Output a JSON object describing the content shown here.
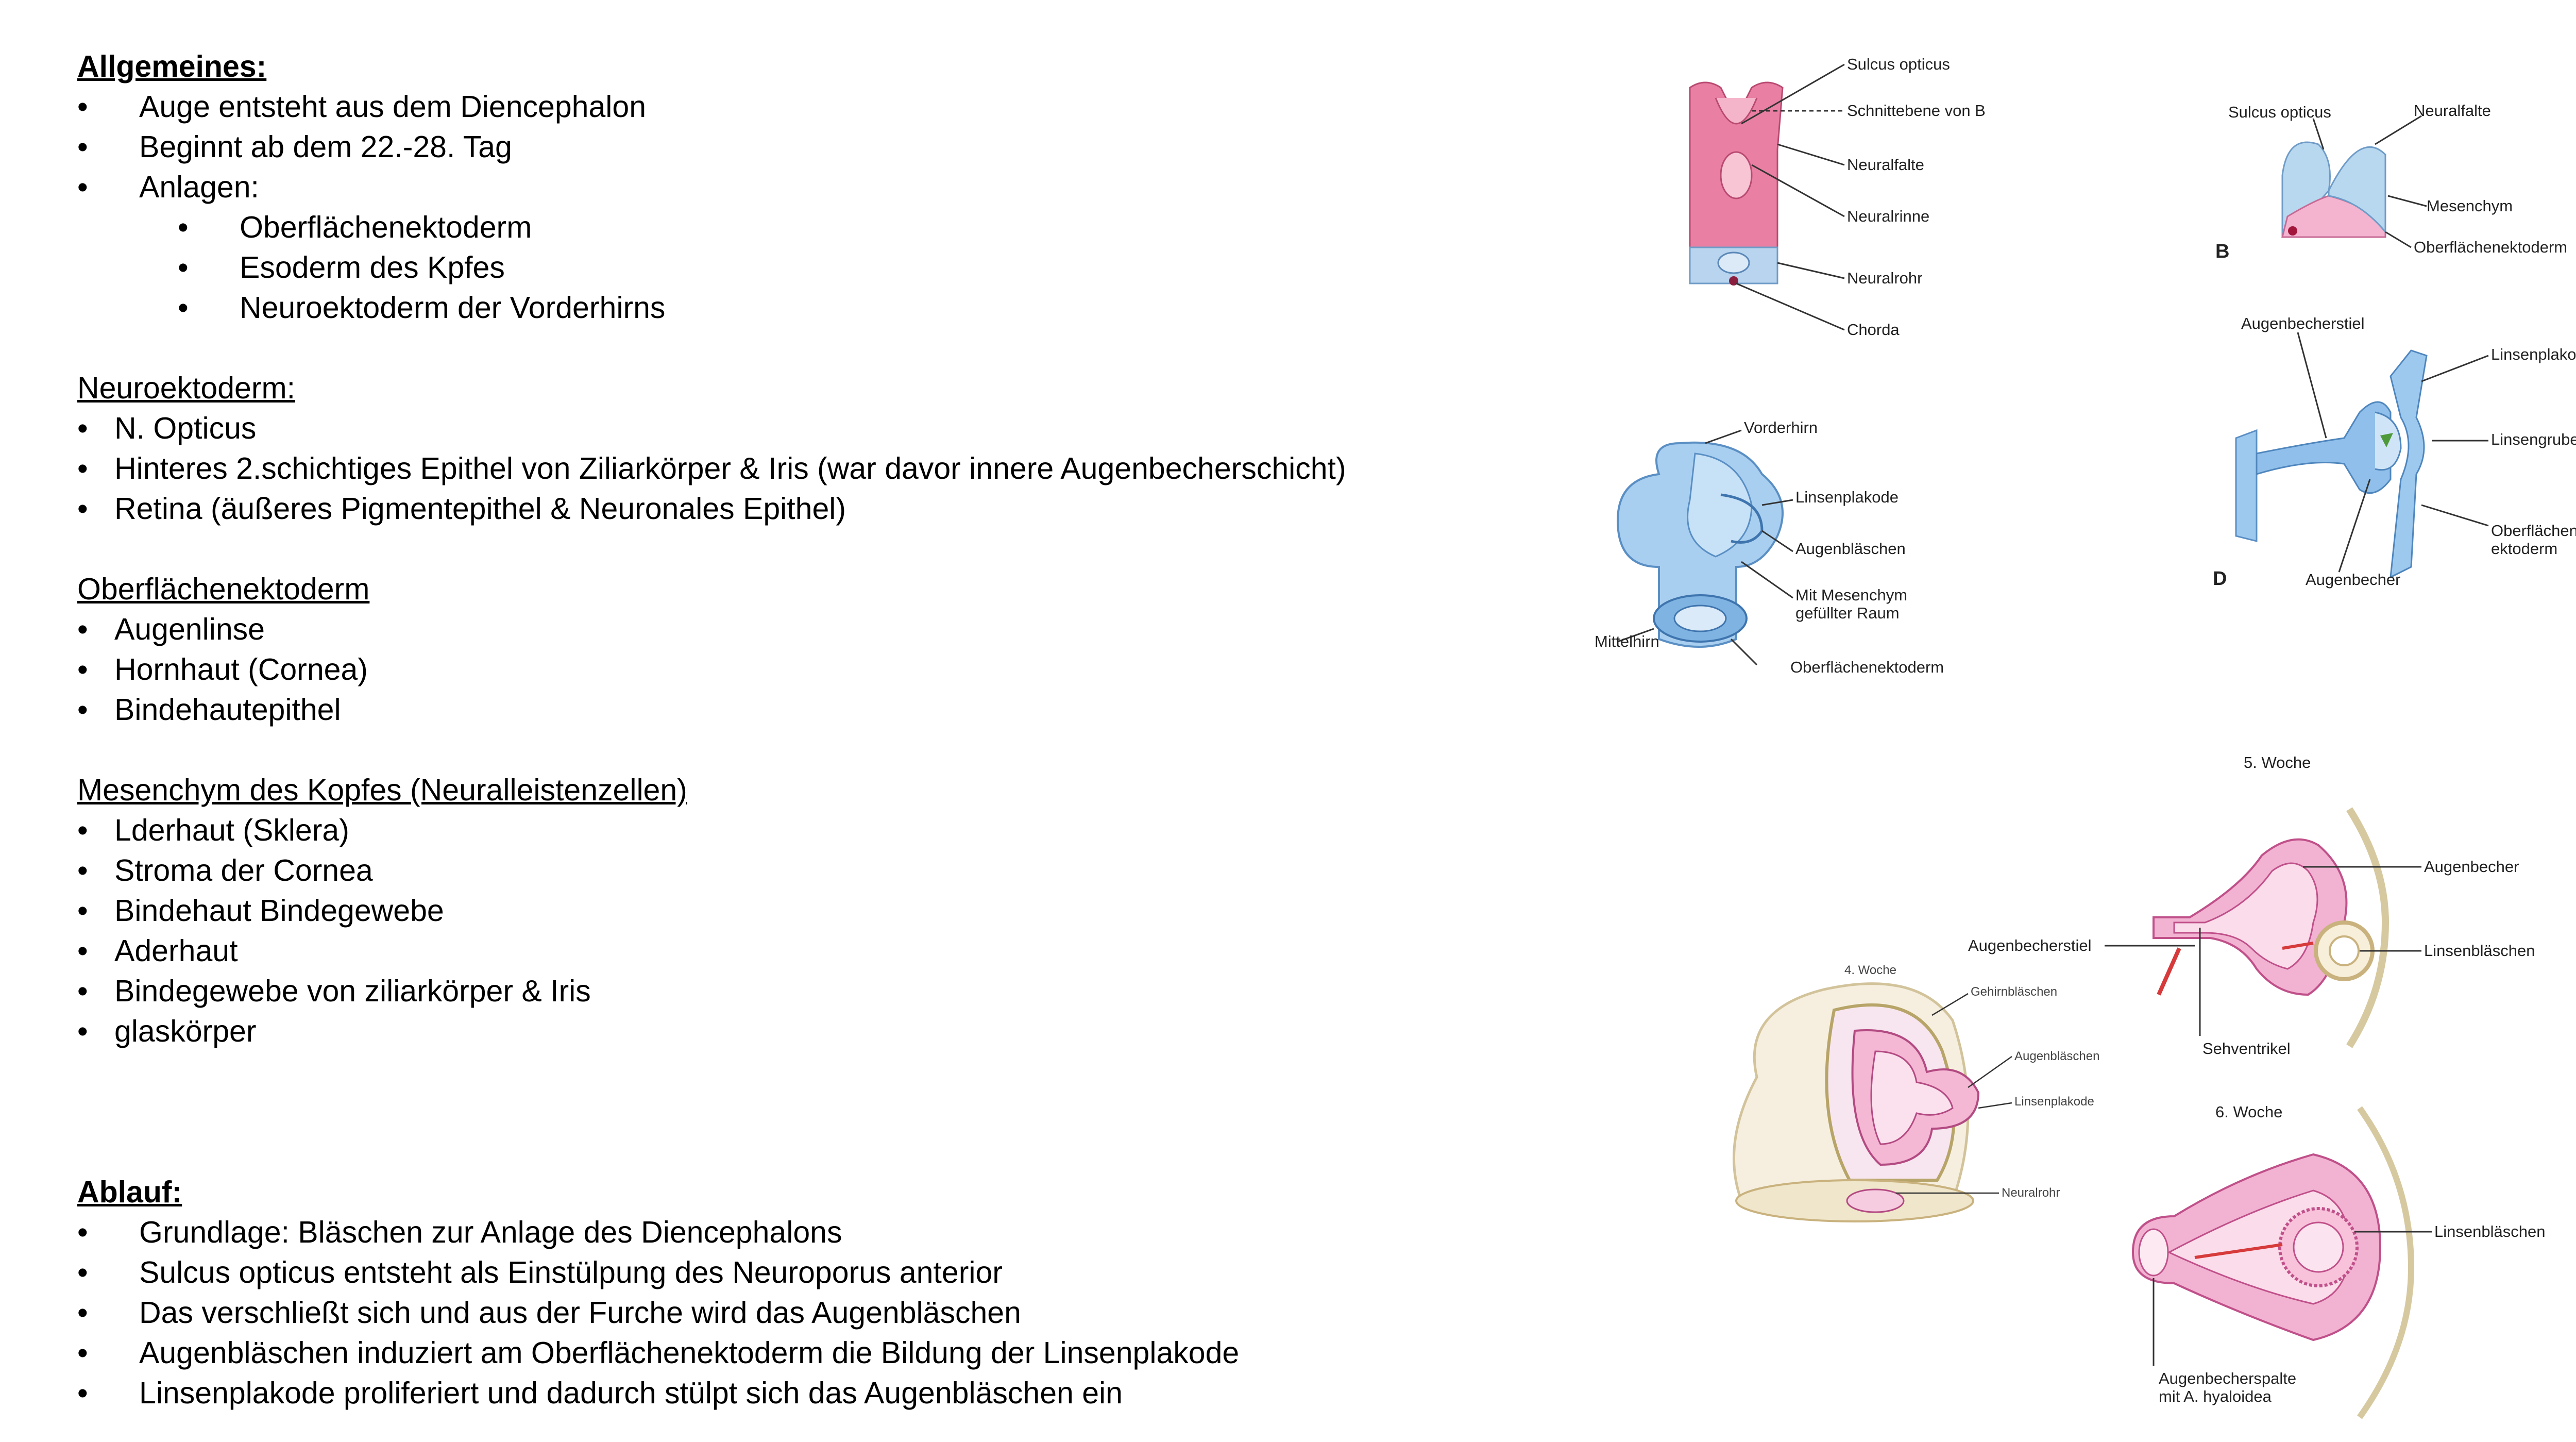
{
  "sections": {
    "allgemeines": {
      "heading": "Allgemeines:",
      "items": [
        "Auge entsteht aus dem Diencephalon",
        "Beginnt ab dem 22.-28. Tag",
        "Anlagen:"
      ],
      "subitems": [
        "Oberflächenektoderm",
        "Esoderm des Kpfes",
        "Neuroektoderm der Vorderhirns"
      ]
    },
    "neuroektoderm": {
      "heading": "Neuroektoderm:",
      "items": [
        "N. Opticus",
        "Hinteres 2.schichtiges Epithel von Ziliarkörper & Iris (war davor innere Augenbecherschicht)",
        "Retina (äußeres Pigmentepithel & Neuronales Epithel)"
      ]
    },
    "oberflaechenektoderm": {
      "heading": "Oberflächenektoderm",
      "items": [
        "Augenlinse",
        "Hornhaut (Cornea)",
        "Bindehautepithel"
      ]
    },
    "mesenchym": {
      "heading": "Mesenchym des Kopfes (Neuralleistenzellen)",
      "items": [
        "Lderhaut (Sklera)",
        "Stroma der Cornea",
        "Bindehaut Bindegewebe",
        "Aderhaut",
        "Bindegewebe von ziliarkörper & Iris",
        "glaskörper"
      ]
    },
    "ablauf": {
      "heading": "Ablauf:",
      "items": [
        "Grundlage: Bläschen zur Anlage des Diencephalons",
        "Sulcus opticus entsteht als Einstülpung des Neuroporus anterior",
        "Das verschließt sich und aus der Furche wird das Augenbläschen",
        "Augenbläschen induziert am Oberflächenektoderm die Bildung der Linsenplakode",
        "Linsenplakode proliferiert und dadurch stülpt sich das Augenbläschen ein"
      ]
    }
  },
  "bullet": "•",
  "figures": {
    "fig_a": {
      "labels": [
        "Sulcus opticus",
        "Schnittebene von B",
        "Neuralfalte",
        "Neuralrinne",
        "Neuralrohr",
        "Chorda"
      ]
    },
    "fig_b": {
      "letter": "B",
      "labels": [
        "Sulcus opticus",
        "Neuralfalte",
        "Mesenchym",
        "Oberflächenektoderm"
      ]
    },
    "fig_c": {
      "labels": [
        "Vorderhirn",
        "Linsenplakode",
        "Augenbläschen",
        "Mit Mesenchym",
        "gefüllter Raum",
        "Mittelhirn",
        "Oberflächenektoderm"
      ]
    },
    "fig_d": {
      "letter": "D",
      "labels": [
        "Augenbecherstiel",
        "Linsenplakode",
        "Linsengrube",
        "Oberflächen-",
        "ektoderm",
        "Augenbecher"
      ]
    },
    "fig_w5": {
      "week": "5. Woche",
      "labels": [
        "Augenbecher",
        "Augenbecherstiel",
        "Linsenbläschen",
        "Sehventrikel"
      ]
    },
    "fig_w4": {
      "week": "4. Woche",
      "labels": [
        "Gehirnbläschen",
        "Augenbläschen",
        "Linsenplakode",
        "Neuralrohr"
      ]
    },
    "fig_w6": {
      "week": "6. Woche",
      "labels": [
        "Linsenbläschen",
        "Augenbecherspalte",
        "mit A. hyaloidea"
      ]
    }
  }
}
